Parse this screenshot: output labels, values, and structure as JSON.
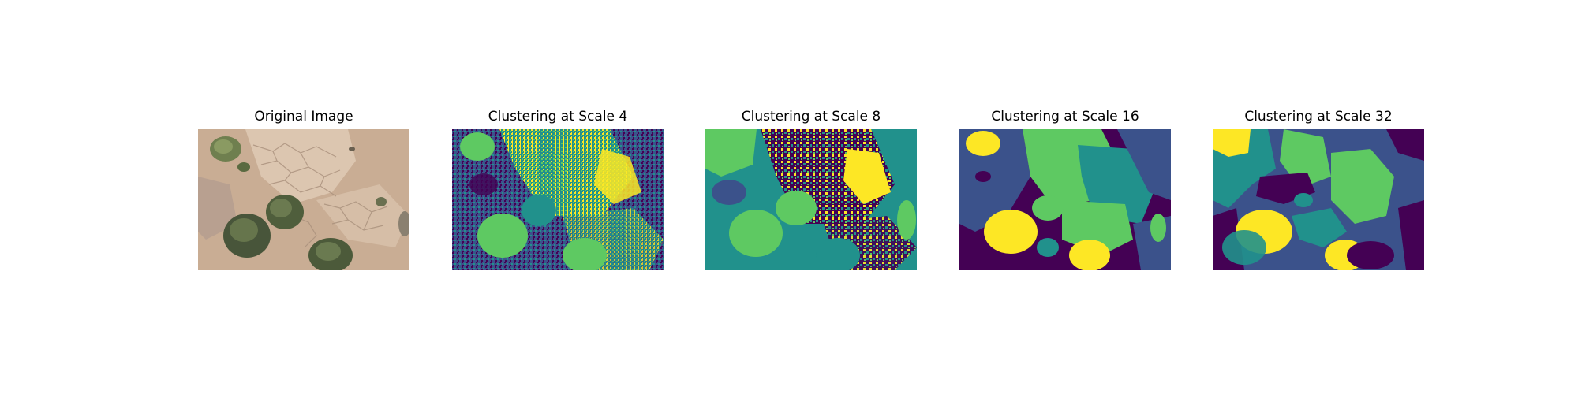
{
  "figure": {
    "panels": [
      {
        "title": "Original Image",
        "kind": "photo",
        "subject": "aerial view of dry cracked soil with shrubs"
      },
      {
        "title": "Clustering at Scale 4",
        "kind": "cluster-map",
        "scale": 4
      },
      {
        "title": "Clustering at Scale 8",
        "kind": "cluster-map",
        "scale": 8
      },
      {
        "title": "Clustering at Scale 16",
        "kind": "cluster-map",
        "scale": 16
      },
      {
        "title": "Clustering at Scale 32",
        "kind": "cluster-map",
        "scale": 32
      }
    ],
    "palette": {
      "cluster_colors": [
        "#440154",
        "#3b528b",
        "#21918c",
        "#5ec962",
        "#fde725"
      ],
      "soil": "#c9ad94",
      "soil_light": "#dcc6b0",
      "soil_dark": "#a9907c",
      "shrub": "#4f5e3c",
      "shrub_light": "#7b8a5d"
    }
  }
}
